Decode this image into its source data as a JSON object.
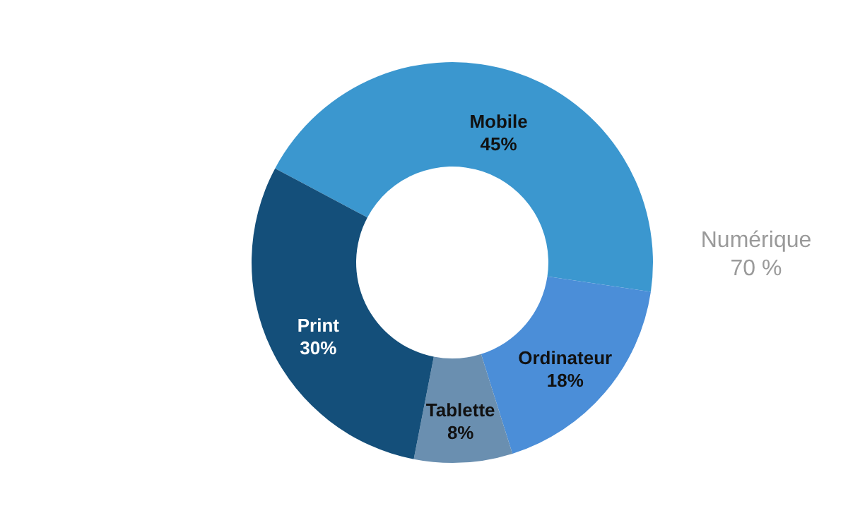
{
  "chart_data": {
    "type": "donut",
    "categories": [
      "Mobile",
      "Ordinateur",
      "Tablette",
      "Print"
    ],
    "values": [
      45,
      18,
      8,
      30
    ],
    "value_labels": [
      "45%",
      "18%",
      "8%",
      "30%"
    ],
    "colors": [
      "#3b97cf",
      "#4b8ed8",
      "#6a8fb0",
      "#144f7a"
    ],
    "annotations": [
      "Numérique\n70 %"
    ]
  }
}
